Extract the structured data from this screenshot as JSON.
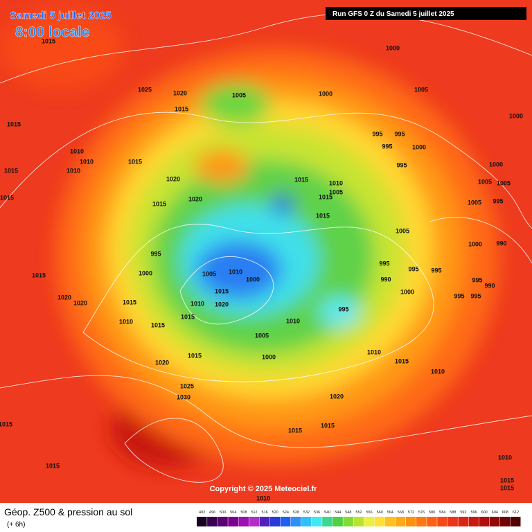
{
  "header": {
    "date": "Samedi 5 juillet 2025",
    "time": "8:00 locale",
    "run": "Run GFS 0 Z du Samedi 5 juillet 2025"
  },
  "map": {
    "copyright": "Copyright © 2025 Meteociel.fr",
    "isobar_labels": [
      1015,
      1000,
      1025,
      1020,
      1015,
      1005,
      1000,
      1005,
      1000,
      1015,
      1010,
      1010,
      1015,
      995,
      995,
      995,
      1000,
      995,
      1000,
      1015,
      1010,
      1020,
      1015,
      1010,
      1005,
      1005,
      1005,
      1015,
      1020,
      1015,
      1015,
      1005,
      995,
      1015,
      1005,
      995,
      1000,
      990,
      995,
      1000,
      1005,
      1010,
      1000,
      995,
      995,
      990,
      995,
      990,
      1015,
      1015,
      1000,
      995,
      995,
      1020,
      1020,
      1015,
      1010,
      1020,
      995,
      1010,
      1015,
      1015,
      1010,
      1005,
      1015,
      1000,
      1010,
      1015,
      1010,
      1020,
      1025,
      1030,
      1020,
      1015,
      1015,
      1015,
      1015,
      1010,
      1015,
      1015,
      1010
    ]
  },
  "footer": {
    "title": "Géop. Z500 & pression au sol",
    "lead": "(+ 6h)",
    "scale_values": [
      492,
      496,
      500,
      504,
      508,
      512,
      516,
      520,
      524,
      528,
      532,
      536,
      540,
      544,
      548,
      552,
      556,
      560,
      564,
      568,
      572,
      576,
      580,
      584,
      588,
      592,
      596,
      600,
      604,
      608,
      612
    ],
    "scale_colors": [
      "#1a0022",
      "#3a0050",
      "#5a0070",
      "#7a0090",
      "#9a10b0",
      "#b030c8",
      "#5020c0",
      "#2a3ad8",
      "#2060f0",
      "#2c90f8",
      "#30c0f8",
      "#40e8f0",
      "#38d890",
      "#50d040",
      "#80dc30",
      "#b8e430",
      "#e8f040",
      "#ffe030",
      "#ffc020",
      "#ffa818",
      "#ff9010",
      "#ff7810",
      "#ff6014",
      "#f84818",
      "#ec3418",
      "#dc2414",
      "#c81810",
      "#b0100c",
      "#900808",
      "#700404",
      "#500000"
    ]
  }
}
